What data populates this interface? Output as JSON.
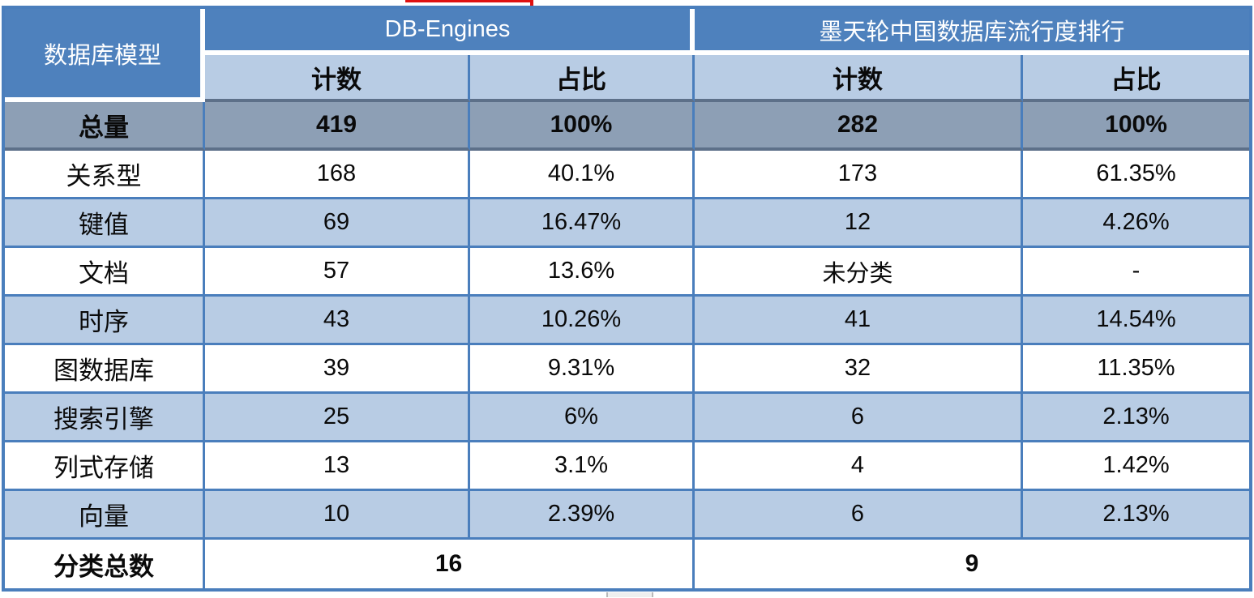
{
  "colors": {
    "header_blue": "#4E81BD",
    "light_blue_row": "#B8CCE4",
    "total_row_gray": "#8D9FB5",
    "grid_border_blue": "#4A7EBC",
    "dark_border": "#5D7089",
    "artifact_red": "#DF1010",
    "text_black": "#0A0A0A",
    "text_white": "#FFFFFF"
  },
  "chart_data": {
    "type": "table",
    "title": "",
    "corner_header": "数据库模型",
    "groups": [
      {
        "label": "DB-Engines",
        "subcolumns": [
          "计数",
          "占比"
        ]
      },
      {
        "label": "墨天轮中国数据库流行度排行",
        "subcolumns": [
          "计数",
          "占比"
        ]
      }
    ],
    "rows": [
      {
        "label": "总量",
        "values": [
          "419",
          "100%",
          "282",
          "100%"
        ],
        "emphasis": "total"
      },
      {
        "label": "关系型",
        "values": [
          "168",
          "40.1%",
          "173",
          "61.35%"
        ],
        "emphasis": "none"
      },
      {
        "label": "键值",
        "values": [
          "69",
          "16.47%",
          "12",
          "4.26%"
        ],
        "emphasis": "none"
      },
      {
        "label": "文档",
        "values": [
          "57",
          "13.6%",
          "未分类",
          "-"
        ],
        "emphasis": "none"
      },
      {
        "label": "时序",
        "values": [
          "43",
          "10.26%",
          "41",
          "14.54%"
        ],
        "emphasis": "none"
      },
      {
        "label": "图数据库",
        "values": [
          "39",
          "9.31%",
          "32",
          "11.35%"
        ],
        "emphasis": "none"
      },
      {
        "label": "搜索引擎",
        "values": [
          "25",
          "6%",
          "6",
          "2.13%"
        ],
        "emphasis": "none"
      },
      {
        "label": "列式存储",
        "values": [
          "13",
          "3.1%",
          "4",
          "1.42%"
        ],
        "emphasis": "none"
      },
      {
        "label": "向量",
        "values": [
          "10",
          "2.39%",
          "6",
          "2.13%"
        ],
        "emphasis": "none"
      }
    ],
    "footer": {
      "label": "分类总数",
      "db_engines_total": "16",
      "motianlun_total": "9"
    }
  }
}
